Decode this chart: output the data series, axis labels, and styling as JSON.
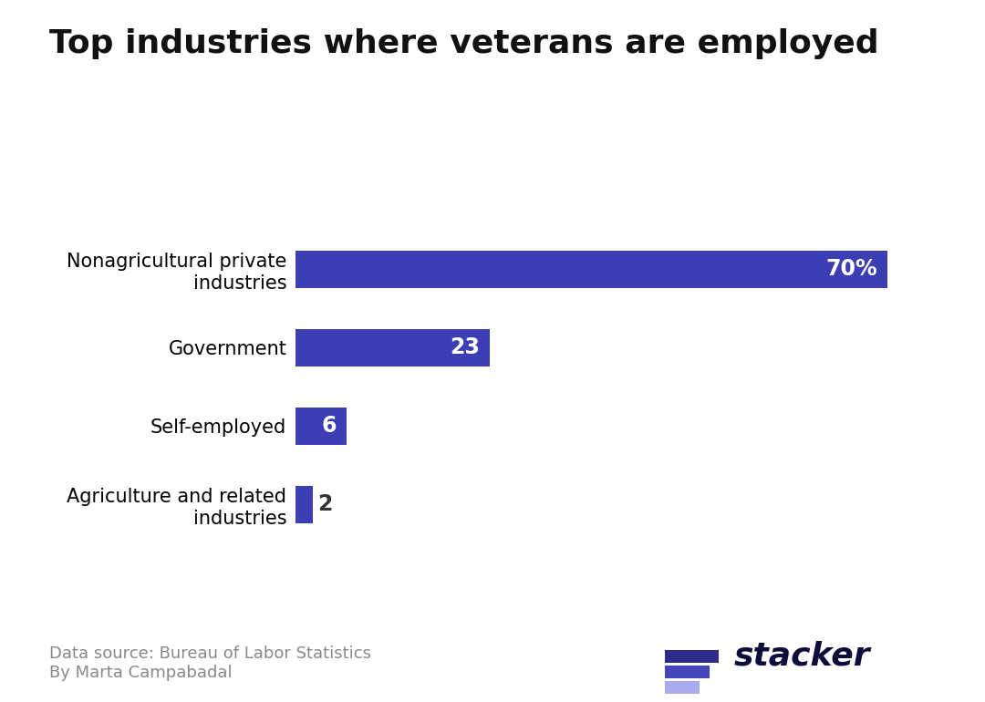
{
  "title": "Top industries where veterans are employed",
  "categories": [
    "Agriculture and related\nindustries",
    "Self-employed",
    "Government",
    "Nonagricultural private\nindustries"
  ],
  "values": [
    2,
    6,
    23,
    70
  ],
  "bar_color": "#3d3db4",
  "label_inside_color": "#ffffff",
  "label_outside_color": "#333333",
  "label_fontsize": 17,
  "title_fontsize": 26,
  "tick_label_fontsize": 15,
  "xlim": [
    0,
    78
  ],
  "background_color": "#ffffff",
  "data_source": "Data source: Bureau of Labor Statistics",
  "author": "By Marta Campabadal",
  "footer_fontsize": 13,
  "bar_height": 0.48,
  "stacker_colors": [
    "#2e2e8a",
    "#4444bb",
    "#aaaaee"
  ],
  "stacker_text_color": "#0d0d3d",
  "stacker_fontsize": 26
}
